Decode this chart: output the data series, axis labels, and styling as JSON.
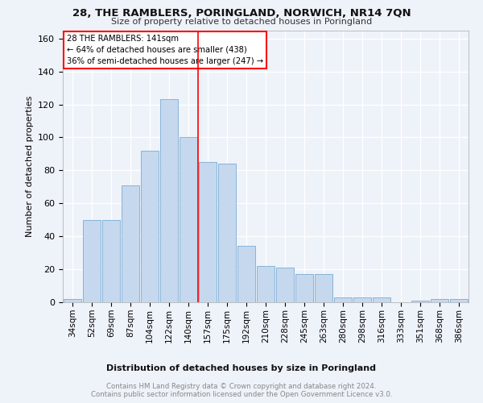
{
  "title": "28, THE RAMBLERS, PORINGLAND, NORWICH, NR14 7QN",
  "subtitle": "Size of property relative to detached houses in Poringland",
  "xlabel": "Distribution of detached houses by size in Poringland",
  "ylabel": "Number of detached properties",
  "bar_color": "#c5d8ee",
  "bar_edge_color": "#7aadd4",
  "bar_categories": [
    "34sqm",
    "52sqm",
    "69sqm",
    "87sqm",
    "104sqm",
    "122sqm",
    "140sqm",
    "157sqm",
    "175sqm",
    "192sqm",
    "210sqm",
    "228sqm",
    "245sqm",
    "263sqm",
    "280sqm",
    "298sqm",
    "316sqm",
    "333sqm",
    "351sqm",
    "368sqm",
    "386sqm"
  ],
  "bar_values": [
    2,
    50,
    50,
    71,
    92,
    123,
    100,
    85,
    84,
    34,
    22,
    21,
    17,
    17,
    3,
    3,
    3,
    0,
    1,
    2,
    2
  ],
  "ylim": [
    0,
    165
  ],
  "yticks": [
    0,
    20,
    40,
    60,
    80,
    100,
    120,
    140,
    160
  ],
  "red_line_index": 6.5,
  "annotation_line1": "28 THE RAMBLERS: 141sqm",
  "annotation_line2": "← 64% of detached houses are smaller (438)",
  "annotation_line3": "36% of semi-detached houses are larger (247) →",
  "footer_line1": "Contains HM Land Registry data © Crown copyright and database right 2024.",
  "footer_line2": "Contains public sector information licensed under the Open Government Licence v3.0.",
  "background_color": "#eef2f9",
  "grid_color": "#ffffff"
}
